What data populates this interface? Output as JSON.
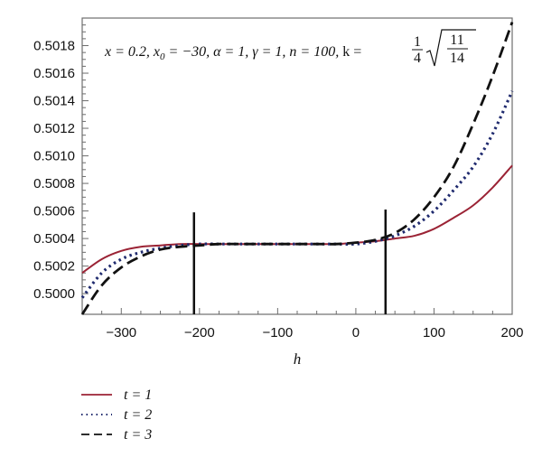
{
  "chart_data": {
    "type": "line",
    "xlabel": "h",
    "ylabel": "",
    "xlim": [
      -350,
      200
    ],
    "ylim": [
      0.49985,
      0.502
    ],
    "x_ticks": [
      "-300",
      "-200",
      "-100",
      "0",
      "100",
      "200"
    ],
    "y_ticks": [
      "0.5000",
      "0.5002",
      "0.5004",
      "0.5006",
      "0.5008",
      "0.5010",
      "0.5012",
      "0.5014",
      "0.5016",
      "0.5018"
    ],
    "annotation": {
      "x_part": "x = 0.2, ",
      "x0_base": "x",
      "x0_sub": "0",
      "x0_rest": " = −30, α = 1, γ = 1, n = 100, ",
      "k_label": "k = ",
      "frac_num": "1",
      "frac_den": "4",
      "sqrt_num": "11",
      "sqrt_den": "14"
    },
    "vertical_markers": [
      {
        "x": -207,
        "y_from": 0.49985,
        "y_to": 0.50059
      },
      {
        "x": 38,
        "y_from": 0.49985,
        "y_to": 0.50061
      }
    ],
    "x": [
      -350,
      -325,
      -300,
      -275,
      -250,
      -225,
      -200,
      -175,
      -150,
      -125,
      -100,
      -75,
      -50,
      -25,
      0,
      25,
      50,
      75,
      100,
      125,
      150,
      175,
      200
    ],
    "series": [
      {
        "name": "t = 1",
        "color": "#9b2335",
        "dash": "solid",
        "values": [
          0.50015,
          0.50025,
          0.50031,
          0.50034,
          0.50035,
          0.50036,
          0.50036,
          0.50036,
          0.50036,
          0.50036,
          0.50036,
          0.50036,
          0.50036,
          0.50036,
          0.50037,
          0.50038,
          0.5004,
          0.50042,
          0.50047,
          0.50055,
          0.50064,
          0.50077,
          0.50093
        ]
      },
      {
        "name": "t = 2",
        "color": "#1f2a6e",
        "dash": "dotted",
        "values": [
          0.49997,
          0.50015,
          0.50025,
          0.5003,
          0.50033,
          0.50035,
          0.50036,
          0.50036,
          0.50036,
          0.50036,
          0.50036,
          0.50036,
          0.50036,
          0.50036,
          0.50036,
          0.50038,
          0.50042,
          0.50049,
          0.5006,
          0.50075,
          0.50092,
          0.50116,
          0.50147
        ]
      },
      {
        "name": "t = 3",
        "color": "#111111",
        "dash": "dashed",
        "values": [
          0.49985,
          0.50006,
          0.50019,
          0.50027,
          0.50032,
          0.50034,
          0.50035,
          0.50036,
          0.50036,
          0.50036,
          0.50036,
          0.50036,
          0.50036,
          0.50036,
          0.50037,
          0.50039,
          0.50044,
          0.50054,
          0.5007,
          0.50092,
          0.50123,
          0.50158,
          0.50197
        ]
      }
    ],
    "legend_position": "bottom-left",
    "grid": false
  }
}
